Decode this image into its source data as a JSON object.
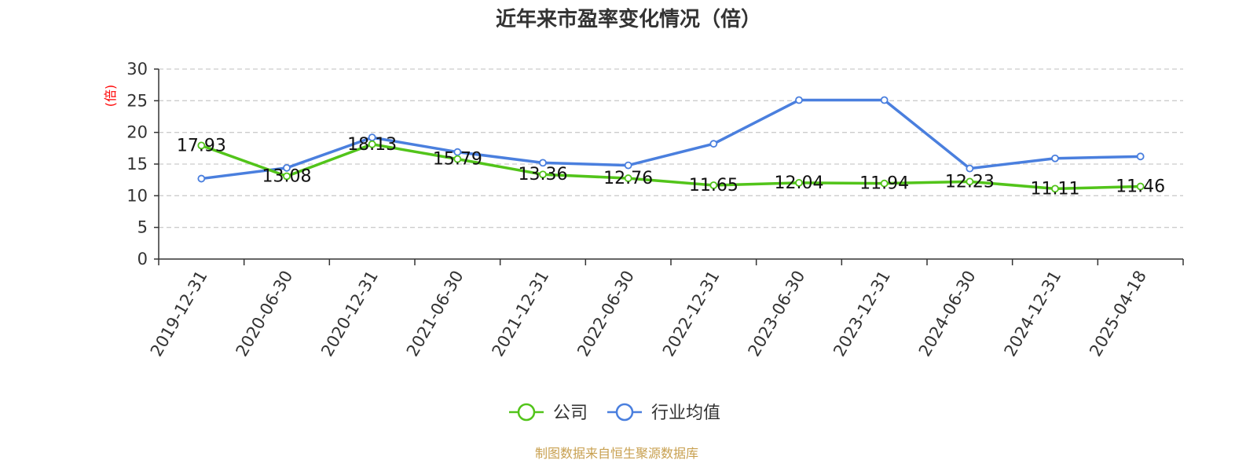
{
  "chart_data": {
    "type": "line",
    "title": "近年来市盈率变化情况（倍）",
    "ylabel": "(倍)",
    "ylim": [
      0,
      30
    ],
    "yticks": [
      0,
      5,
      10,
      15,
      20,
      25,
      30
    ],
    "grid": true,
    "legend_position": "bottom-center",
    "categories": [
      "2019-12-31",
      "2020-06-30",
      "2020-12-31",
      "2021-06-30",
      "2021-12-31",
      "2022-06-30",
      "2022-12-31",
      "2023-06-30",
      "2023-12-31",
      "2024-06-30",
      "2024-12-31",
      "2025-04-18"
    ],
    "series": [
      {
        "name": "公司",
        "color": "#52c41a",
        "values": [
          17.93,
          13.08,
          18.13,
          15.79,
          13.36,
          12.76,
          11.65,
          12.04,
          11.94,
          12.23,
          11.11,
          11.46
        ],
        "labels": [
          "17.93",
          "13.08",
          "18.13",
          "15.79",
          "13.36",
          "12.76",
          "11.65",
          "12.04",
          "11.94",
          "12.23",
          "11.11",
          "11.46"
        ]
      },
      {
        "name": "行业均值",
        "color": "#4a7fde",
        "values": [
          12.7,
          14.4,
          19.2,
          16.9,
          15.2,
          14.8,
          18.2,
          25.1,
          25.1,
          14.3,
          15.9,
          16.2
        ]
      }
    ]
  },
  "colors": {
    "ylabel": "#ff0000",
    "source": "#c8a050",
    "axis": "#333333",
    "grid": "#cccccc"
  },
  "footer": {
    "source": "制图数据来自恒生聚源数据库"
  }
}
